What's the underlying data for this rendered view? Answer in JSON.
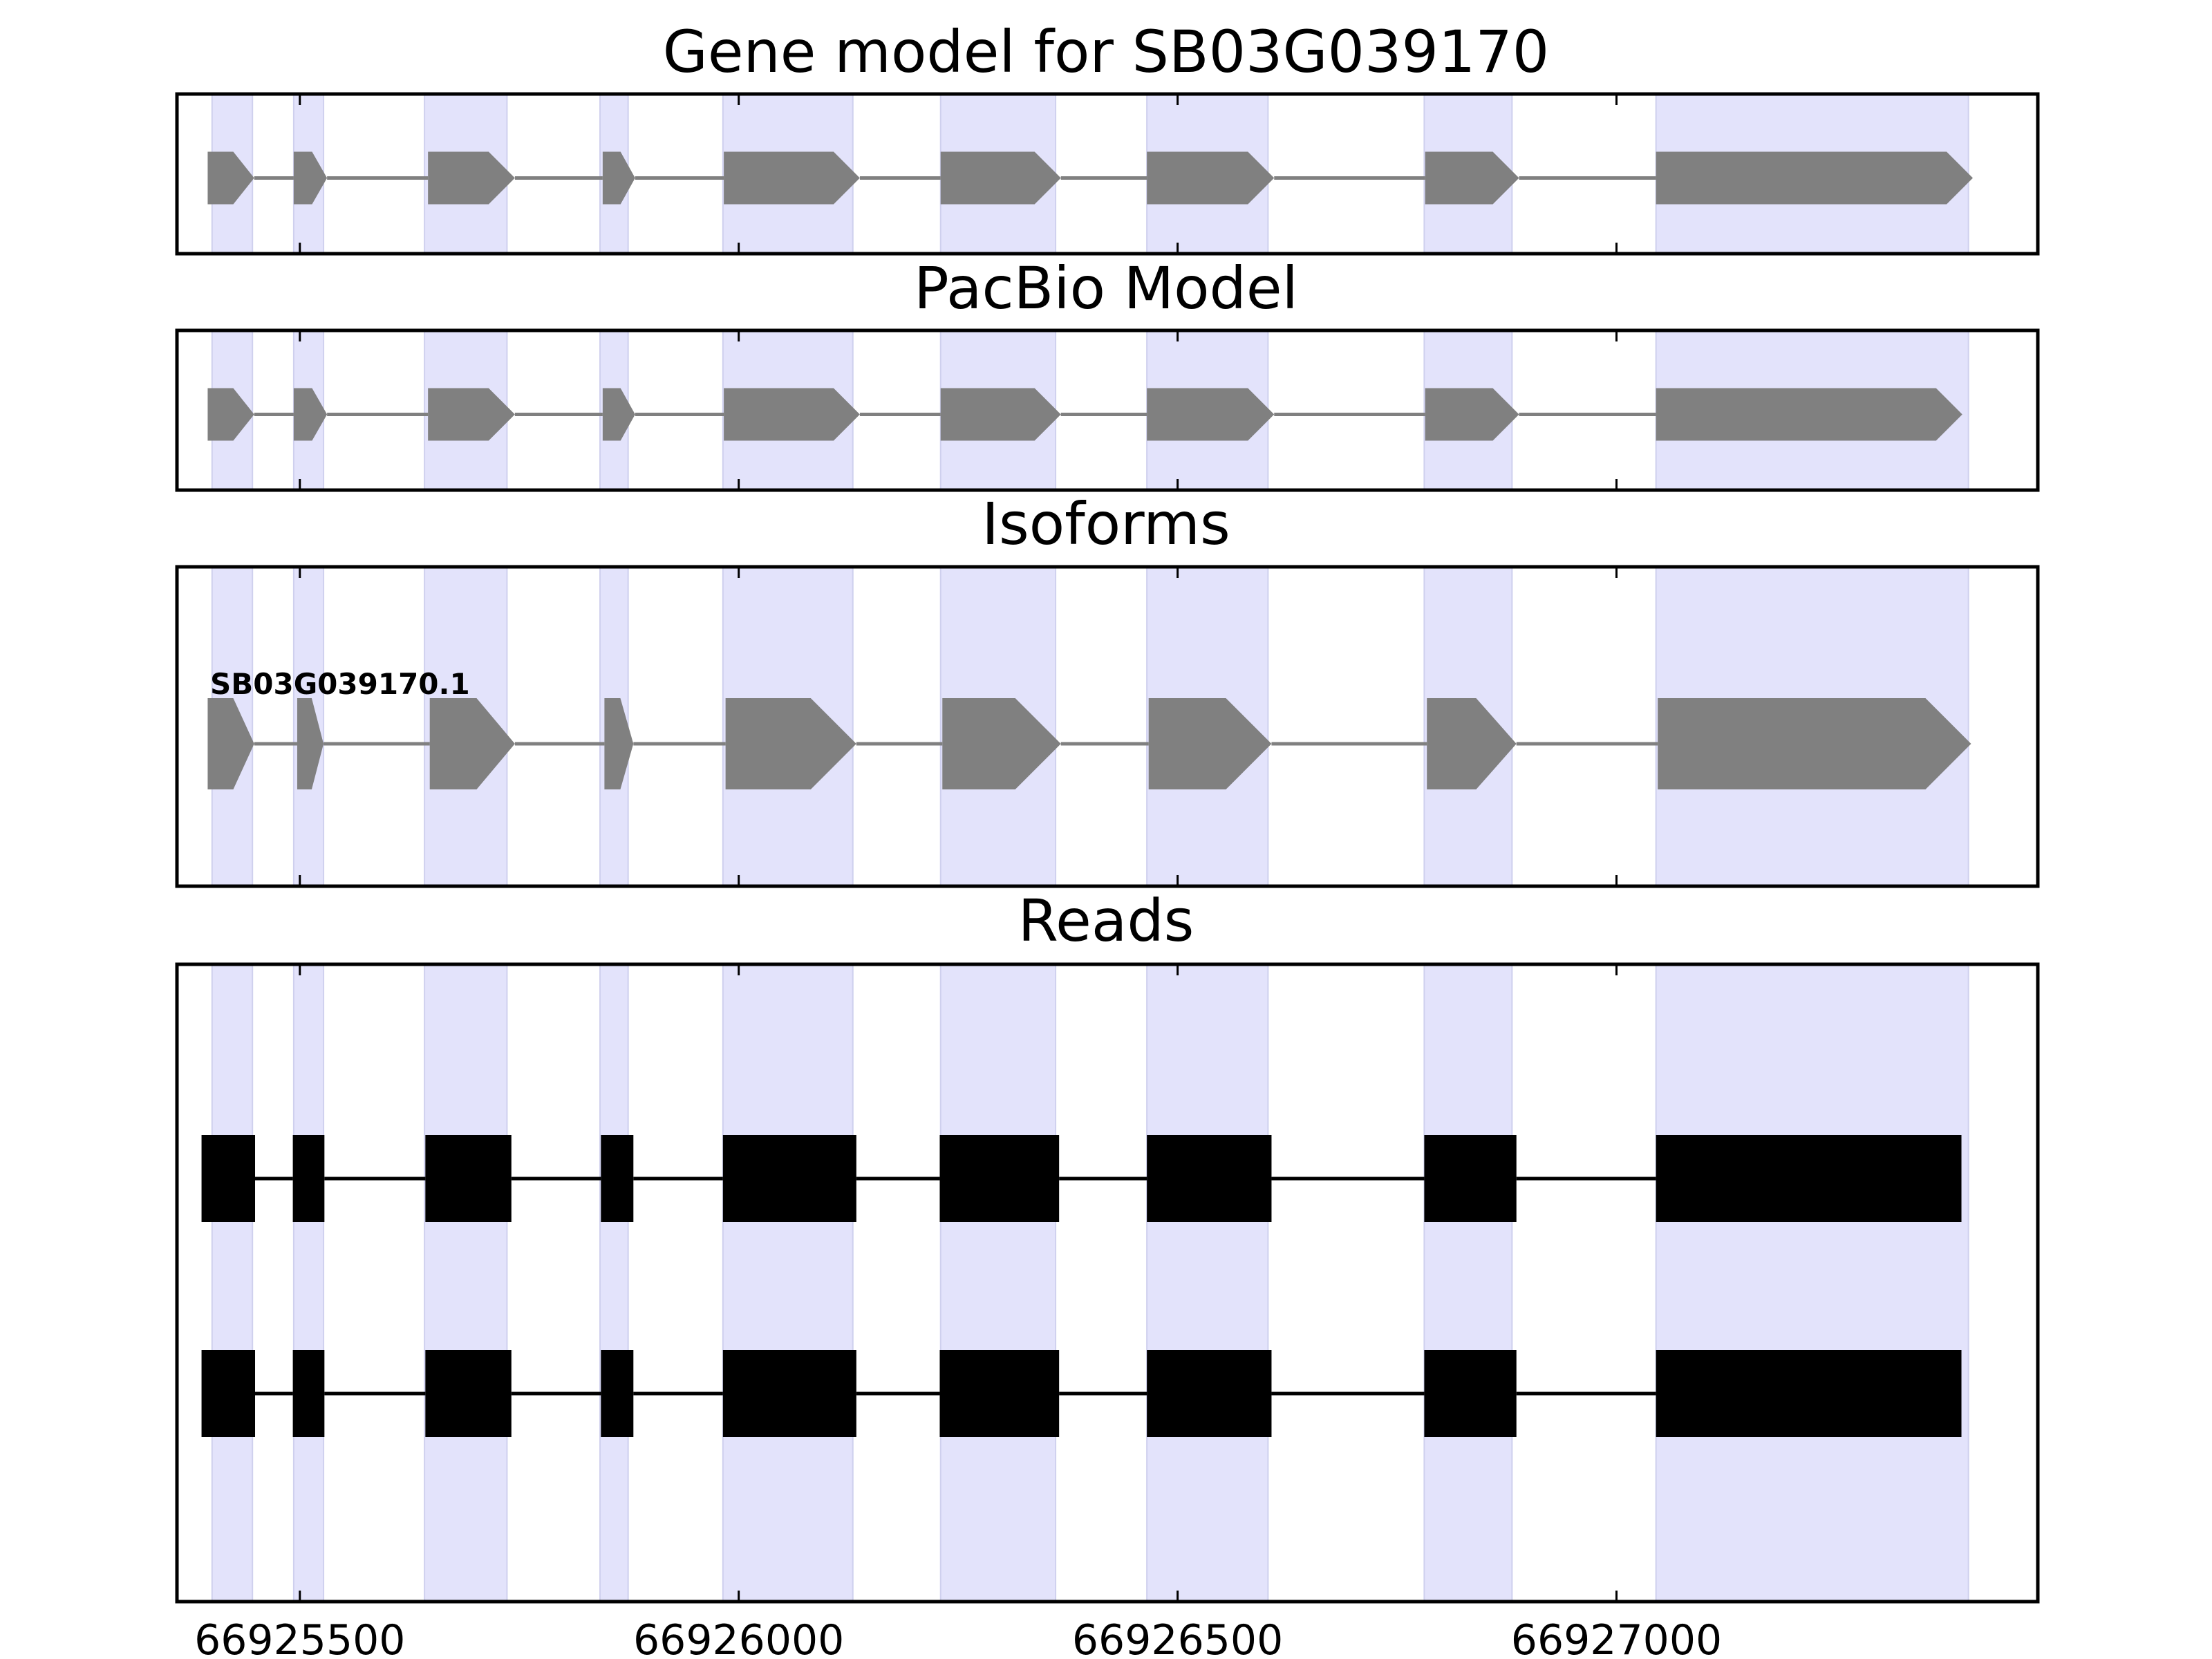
{
  "chart_data": {
    "type": "gene-structure",
    "xlim": [
      66925360,
      66927480
    ],
    "x_ticks": [
      66925500,
      66926000,
      66926500,
      66927000
    ],
    "x_tick_labels": [
      "66925500",
      "66926000",
      "66926500",
      "66927000"
    ],
    "colors": {
      "exon_band": "#e3e3fb",
      "exon_band_edge": "#cfd0ee",
      "gene_shape": "#808080",
      "read_block": "#000000",
      "frame": "#000000"
    },
    "exon_bands": [
      [
        66925400,
        66925446
      ],
      [
        66925493,
        66925527
      ],
      [
        66925642,
        66925736
      ],
      [
        66925842,
        66925874
      ],
      [
        66925982,
        66926130
      ],
      [
        66926230,
        66926361
      ],
      [
        66926465,
        66926603
      ],
      [
        66926781,
        66926881
      ],
      [
        66927045,
        66927401
      ]
    ],
    "panels": [
      {
        "title": "Gene model for SB03G039170",
        "exons": [
          [
            66925395,
            66925448
          ],
          [
            66925493,
            66925531
          ],
          [
            66925646,
            66925745
          ],
          [
            66925845,
            66925882
          ],
          [
            66925983,
            66926138
          ],
          [
            66926230,
            66926367
          ],
          [
            66926465,
            66926610
          ],
          [
            66926782,
            66926889
          ],
          [
            66927045,
            66927406
          ]
        ]
      },
      {
        "title": "PacBio Model",
        "exons": [
          [
            66925395,
            66925448
          ],
          [
            66925493,
            66925531
          ],
          [
            66925646,
            66925745
          ],
          [
            66925845,
            66925882
          ],
          [
            66925983,
            66926138
          ],
          [
            66926230,
            66926367
          ],
          [
            66926465,
            66926610
          ],
          [
            66926782,
            66926889
          ],
          [
            66927045,
            66927394
          ]
        ]
      },
      {
        "title": "Isoforms",
        "isoforms": [
          {
            "label": "SB03G039170.1",
            "exons": [
              [
                66925395,
                66925448
              ],
              [
                66925497,
                66925527
              ],
              [
                66925648,
                66925745
              ],
              [
                66925847,
                66925880
              ],
              [
                66925985,
                66926134
              ],
              [
                66926232,
                66926367
              ],
              [
                66926467,
                66926607
              ],
              [
                66926784,
                66926886
              ],
              [
                66927047,
                66927404
              ]
            ]
          }
        ]
      },
      {
        "title": "Reads",
        "reads": [
          [
            [
              66925388,
              66925449
            ],
            [
              66925492,
              66925528
            ],
            [
              66925643,
              66925741
            ],
            [
              66925843,
              66925880
            ],
            [
              66925982,
              66926134
            ],
            [
              66926229,
              66926365
            ],
            [
              66926465,
              66926607
            ],
            [
              66926781,
              66926886
            ],
            [
              66927045,
              66927393
            ]
          ],
          [
            [
              66925388,
              66925449
            ],
            [
              66925492,
              66925528
            ],
            [
              66925643,
              66925741
            ],
            [
              66925843,
              66925880
            ],
            [
              66925982,
              66926134
            ],
            [
              66926229,
              66926365
            ],
            [
              66926465,
              66926607
            ],
            [
              66926781,
              66926886
            ],
            [
              66927045,
              66927393
            ]
          ]
        ]
      }
    ]
  }
}
